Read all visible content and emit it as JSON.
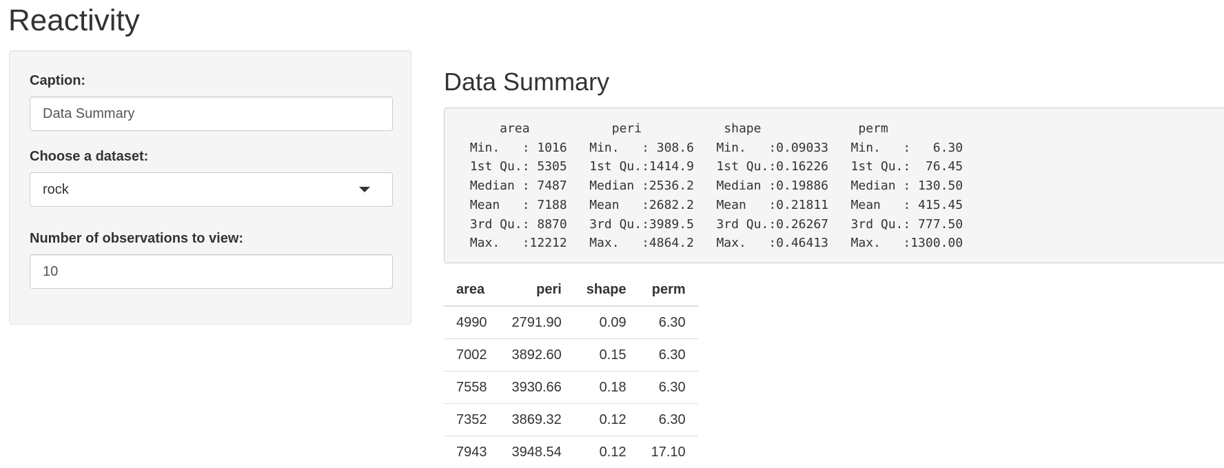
{
  "app": {
    "title": "Reactivity"
  },
  "sidebar": {
    "caption_label": "Caption:",
    "caption_value": "Data Summary",
    "dataset_label": "Choose a dataset:",
    "dataset_selected": "rock",
    "obs_label": "Number of observations to view:",
    "obs_value": "10"
  },
  "main": {
    "caption": "Data Summary",
    "summary_text": "     area           peri           shape             perm        \n Min.   : 1016   Min.   : 308.6   Min.   :0.09033   Min.   :   6.30  \n 1st Qu.: 5305   1st Qu.:1414.9   1st Qu.:0.16226   1st Qu.:  76.45  \n Median : 7487   Median :2536.2   Median :0.19886   Median : 130.50  \n Mean   : 7188   Mean   :2682.2   Mean   :0.21811   Mean   : 415.45  \n 3rd Qu.: 8870   3rd Qu.:3989.5   3rd Qu.:0.26267   3rd Qu.: 777.50  \n Max.   :12212   Max.   :4864.2   Max.   :0.46413   Max.   :1300.00  ",
    "table": {
      "columns": [
        "area",
        "peri",
        "shape",
        "perm"
      ],
      "rows": [
        [
          "4990",
          "2791.90",
          "0.09",
          "6.30"
        ],
        [
          "7002",
          "3892.60",
          "0.15",
          "6.30"
        ],
        [
          "7558",
          "3930.66",
          "0.18",
          "6.30"
        ],
        [
          "7352",
          "3869.32",
          "0.12",
          "6.30"
        ],
        [
          "7943",
          "3948.54",
          "0.12",
          "17.10"
        ]
      ]
    }
  },
  "icons": {
    "dropdown": "caret-down-icon"
  }
}
